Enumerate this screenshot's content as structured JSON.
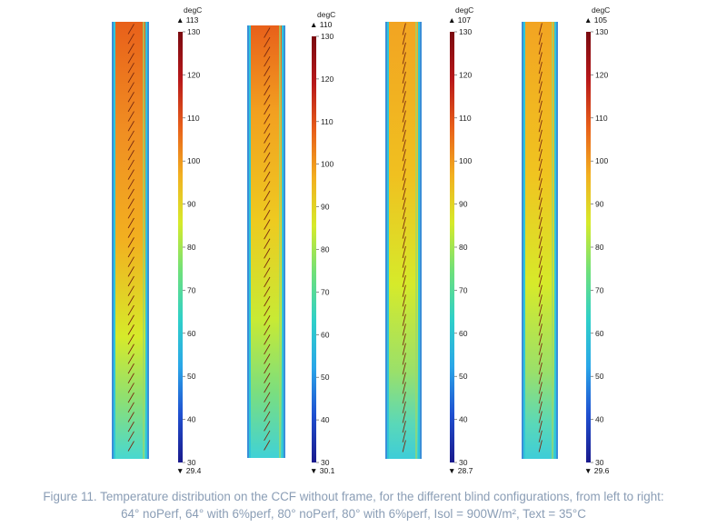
{
  "figure": {
    "panels": [
      {
        "unit": "degC",
        "max_label": "113",
        "min_label": "29.4",
        "scale_ticks": [
          "130",
          "120",
          "110",
          "100",
          "90",
          "80",
          "70",
          "60",
          "50",
          "40",
          "30"
        ],
        "blind_angle_deg": 64,
        "perforated": false
      },
      {
        "unit": "degC",
        "max_label": "110",
        "min_label": "30.1",
        "scale_ticks": [
          "130",
          "120",
          "110",
          "100",
          "90",
          "80",
          "70",
          "60",
          "50",
          "40",
          "30"
        ],
        "blind_angle_deg": 64,
        "perforated": true
      },
      {
        "unit": "degC",
        "max_label": "107",
        "min_label": "28.7",
        "scale_ticks": [
          "130",
          "120",
          "110",
          "100",
          "90",
          "80",
          "70",
          "60",
          "50",
          "40",
          "30"
        ],
        "blind_angle_deg": 80,
        "perforated": false
      },
      {
        "unit": "degC",
        "max_label": "105",
        "min_label": "29.6",
        "scale_ticks": [
          "130",
          "120",
          "110",
          "100",
          "90",
          "80",
          "70",
          "60",
          "50",
          "40",
          "30"
        ],
        "blind_angle_deg": 80,
        "perforated": true
      }
    ],
    "colormap": [
      "#1a1a8c",
      "#1f4fd0",
      "#2aa6e8",
      "#2fd0c8",
      "#6fe07a",
      "#d6ea2a",
      "#f2b020",
      "#e8601a",
      "#b8181a",
      "#7a0a10"
    ],
    "scale_range": [
      30,
      130
    ],
    "max_marker": "▲",
    "min_marker": "▼"
  },
  "caption": {
    "line1": "Figure 11. Temperature distribution on the CCF without frame, for the different blind configurations, from left to right:",
    "line2": "64° noPerf, 64° with 6%perf, 80° noPerf, 80° with 6%perf, Isol = 900W/m², Text = 35°C"
  }
}
